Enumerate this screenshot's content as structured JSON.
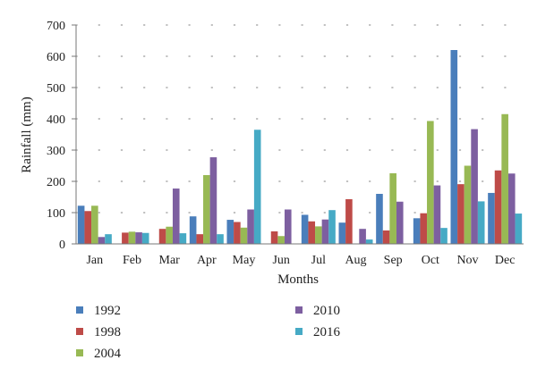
{
  "chart_data": {
    "type": "bar",
    "title": "",
    "xlabel": "Months",
    "ylabel": "Rainfall (mm)",
    "ylim": [
      0,
      700
    ],
    "yticks": [
      0,
      100,
      200,
      300,
      400,
      500,
      600,
      700
    ],
    "grid": "dotted horizontal",
    "legend_position": "bottom",
    "categories": [
      "Jan",
      "Feb",
      "Mar",
      "Apr",
      "May",
      "Jun",
      "Jul",
      "Aug",
      "Sep",
      "Oct",
      "Nov",
      "Dec"
    ],
    "series": [
      {
        "name": "1992",
        "color": "#4a7ebb",
        "values": [
          122,
          0,
          0,
          88,
          77,
          0,
          93,
          68,
          160,
          82,
          620,
          163
        ]
      },
      {
        "name": "1998",
        "color": "#be4b48",
        "values": [
          105,
          36,
          48,
          31,
          70,
          40,
          72,
          143,
          43,
          98,
          191,
          235
        ]
      },
      {
        "name": "2004",
        "color": "#98b954",
        "values": [
          122,
          39,
          55,
          220,
          52,
          25,
          56,
          0,
          226,
          393,
          250,
          415
        ]
      },
      {
        "name": "2010",
        "color": "#7d5fa0",
        "values": [
          22,
          37,
          177,
          277,
          110,
          110,
          78,
          48,
          135,
          187,
          367,
          225
        ]
      },
      {
        "name": "2016",
        "color": "#46aac5",
        "values": [
          31,
          35,
          34,
          31,
          365,
          0,
          108,
          14,
          0,
          51,
          136,
          97
        ]
      }
    ]
  }
}
